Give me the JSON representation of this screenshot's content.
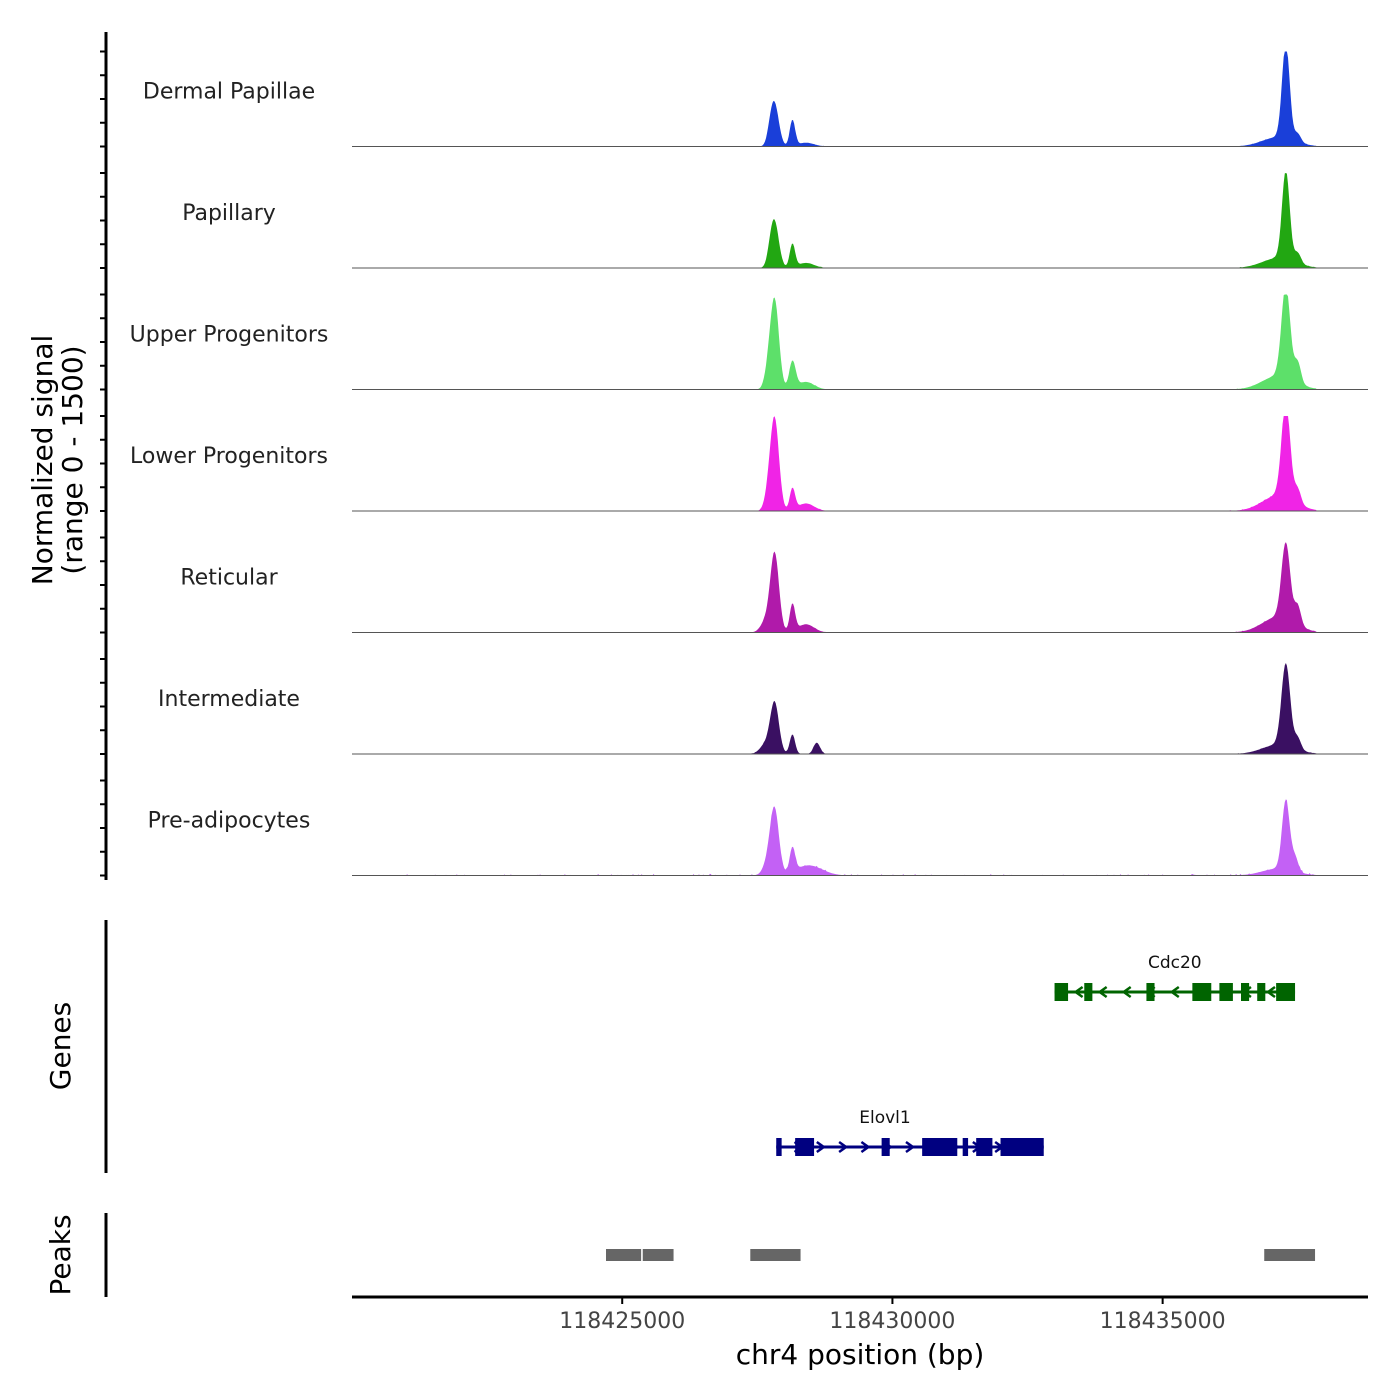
{
  "chart_data": {
    "type": "area",
    "title": "",
    "signal_ylabel_line1": "Normalized signal",
    "signal_ylabel_line2": "(range 0 - 1500)",
    "ylim": [
      0,
      1500
    ],
    "xlabel": "chr4 position (bp)",
    "xlim": [
      118420000,
      118438800
    ],
    "xticks": [
      118425000,
      118430000,
      118435000
    ],
    "xtick_labels": [
      "118425000",
      "118430000",
      "118435000"
    ],
    "tracks": [
      {
        "name": "Dermal Papillae",
        "color": "#1a3fd9",
        "peaks": [
          [
            118427750,
            140,
            60
          ],
          [
            118427820,
            640,
            80
          ],
          [
            118428150,
            410,
            50
          ],
          [
            118428400,
            60,
            150
          ],
          [
            118437280,
            1500,
            70
          ],
          [
            118437150,
            150,
            300
          ],
          [
            118437500,
            130,
            60
          ]
        ],
        "noise": 8
      },
      {
        "name": "Papillary",
        "color": "#22a712",
        "peaks": [
          [
            118427750,
            130,
            60
          ],
          [
            118427820,
            700,
            80
          ],
          [
            118428150,
            370,
            50
          ],
          [
            118428400,
            80,
            150
          ],
          [
            118437280,
            1400,
            70
          ],
          [
            118437150,
            160,
            300
          ],
          [
            118437500,
            160,
            60
          ]
        ],
        "noise": 6
      },
      {
        "name": "Upper Progenitors",
        "color": "#5de06a",
        "peaks": [
          [
            118427700,
            230,
            70
          ],
          [
            118427820,
            1400,
            80
          ],
          [
            118428150,
            430,
            60
          ],
          [
            118428400,
            120,
            150
          ],
          [
            118437280,
            1450,
            80
          ],
          [
            118437150,
            220,
            300
          ],
          [
            118437500,
            320,
            60
          ]
        ],
        "noise": 6
      },
      {
        "name": "Lower Progenitors",
        "color": "#f024e6",
        "peaks": [
          [
            118427700,
            200,
            70
          ],
          [
            118427820,
            1450,
            80
          ],
          [
            118428150,
            340,
            50
          ],
          [
            118428400,
            120,
            150
          ],
          [
            118437280,
            1500,
            80
          ],
          [
            118437150,
            250,
            300
          ],
          [
            118437500,
            220,
            60
          ]
        ],
        "noise": 8
      },
      {
        "name": "Reticular",
        "color": "#b01aaa",
        "peaks": [
          [
            118427650,
            170,
            90
          ],
          [
            118427820,
            1250,
            80
          ],
          [
            118428150,
            430,
            50
          ],
          [
            118428400,
            130,
            150
          ],
          [
            118437280,
            1200,
            80
          ],
          [
            118437150,
            250,
            300
          ],
          [
            118437500,
            300,
            60
          ]
        ],
        "noise": 8
      },
      {
        "name": "Intermediate",
        "color": "#3a1062",
        "peaks": [
          [
            118427650,
            150,
            100
          ],
          [
            118427820,
            800,
            80
          ],
          [
            118428150,
            310,
            50
          ],
          [
            118428600,
            180,
            60
          ],
          [
            118437280,
            1300,
            80
          ],
          [
            118437150,
            150,
            300
          ],
          [
            118437500,
            180,
            60
          ]
        ],
        "noise": 6
      },
      {
        "name": "Pre-adipocytes",
        "color": "#c361f5",
        "peaks": [
          [
            118427700,
            200,
            90
          ],
          [
            118427820,
            1000,
            80
          ],
          [
            118428150,
            380,
            50
          ],
          [
            118428450,
            160,
            250
          ],
          [
            118437280,
            1100,
            70
          ],
          [
            118437150,
            110,
            300
          ],
          [
            118437450,
            220,
            60
          ]
        ],
        "noise": 25
      }
    ],
    "genes_label": "Genes",
    "genes": [
      {
        "name": "Cdc20",
        "color": "#006400",
        "start": 118433000,
        "end": 118437450,
        "strand": "-",
        "exons": [
          [
            118433000,
            118433250
          ],
          [
            118433550,
            118433700
          ],
          [
            118434700,
            118434850
          ],
          [
            118435550,
            118435900
          ],
          [
            118436050,
            118436300
          ],
          [
            118436450,
            118436600
          ],
          [
            118436750,
            118436900
          ],
          [
            118437100,
            118437450
          ]
        ]
      },
      {
        "name": "Elovl1",
        "color": "#000080",
        "start": 118427850,
        "end": 118432800,
        "strand": "+",
        "exons": [
          [
            118427850,
            118427950
          ],
          [
            118428200,
            118428550
          ],
          [
            118429800,
            118429950
          ],
          [
            118430550,
            118431200
          ],
          [
            118431300,
            118431400
          ],
          [
            118431550,
            118431850
          ],
          [
            118432000,
            118432800
          ]
        ]
      }
    ],
    "peaks_label": "Peaks",
    "peak_regions": [
      [
        118424700,
        118425350
      ],
      [
        118425380,
        118425950
      ],
      [
        118427370,
        118428300
      ],
      [
        118436880,
        118437820
      ]
    ],
    "peak_color": "#666666"
  }
}
